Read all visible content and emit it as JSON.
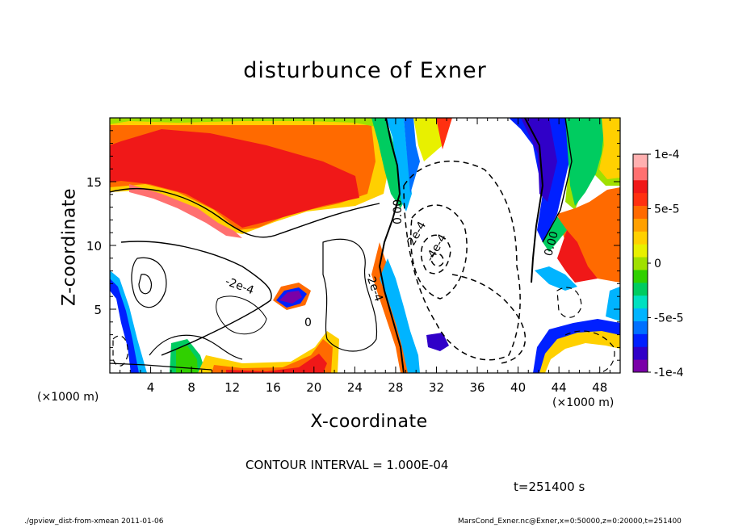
{
  "chart_data": {
    "type": "heatmap",
    "title": "disturbunce of Exner",
    "xlabel": "X-coordinate",
    "ylabel": "Z-coordinate",
    "x_unit": "(×1000 m)",
    "xlim": [
      0,
      50
    ],
    "ylim": [
      0,
      20
    ],
    "x_ticks": [
      4,
      8,
      12,
      16,
      20,
      24,
      28,
      32,
      36,
      40,
      44,
      48
    ],
    "y_ticks": [
      5,
      10,
      15
    ],
    "colorbar": {
      "min": -0.0001,
      "max": 0.0001,
      "ticks": [
        {
          "value": 0.0001,
          "label": "1e-4"
        },
        {
          "value": 5e-05,
          "label": "5e-5"
        },
        {
          "value": 0,
          "label": "0"
        },
        {
          "value": -5e-05,
          "label": "-5e-5"
        },
        {
          "value": -0.0001,
          "label": "-1e-4"
        }
      ],
      "colors": [
        "#7a00a8",
        "#3000c8",
        "#0020ff",
        "#0070ff",
        "#00b4ff",
        "#00e0c0",
        "#00cc60",
        "#30d000",
        "#a0e000",
        "#e8f000",
        "#ffd000",
        "#ffa000",
        "#ff6a00",
        "#ff3010",
        "#f01818",
        "#ff7070",
        "#ffb0b0"
      ]
    },
    "contour_labels": [
      "0.00",
      "2e-4",
      "-4e-4",
      "0.00",
      "-2e-4",
      "-2e-4",
      "0"
    ],
    "contour_interval_text": "CONTOUR INTERVAL = 1.000E-04",
    "time_text": "t=251400 s",
    "footer_left": "./gpview_dist-from-xmean  2011-01-06",
    "footer_right": "MarsCond_Exner.nc@Exner,x=0:50000,z=0:20000,t=251400"
  }
}
